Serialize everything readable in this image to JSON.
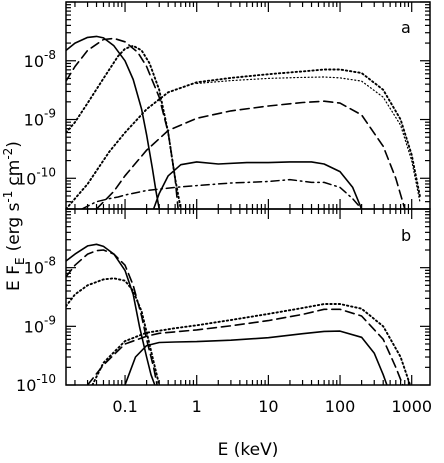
{
  "chart_data": [
    {
      "panel": "a",
      "type": "line",
      "xscale": "log",
      "yscale": "log",
      "xlim": [
        0.015,
        1800
      ],
      "ylim": [
        3e-11,
        1e-07
      ],
      "xticks": [
        0.1,
        1,
        10,
        100,
        1000
      ],
      "xtick_labels": [
        "0.1",
        "1",
        "10",
        "100",
        "1000"
      ],
      "yticks": [
        1e-10,
        1e-09,
        1e-08
      ],
      "ytick_labels": [
        "10",
        "-10",
        "10",
        "-9",
        "10",
        "-8"
      ],
      "series": [
        {
          "style": "solid",
          "points": [
            [
              0.015,
              1.5e-08
            ],
            [
              0.02,
              2e-08
            ],
            [
              0.03,
              2.5e-08
            ],
            [
              0.04,
              2.6e-08
            ],
            [
              0.05,
              2.45e-08
            ],
            [
              0.07,
              1.8e-08
            ],
            [
              0.1,
              1e-08
            ],
            [
              0.13,
              4.8e-09
            ],
            [
              0.17,
              1.5e-09
            ],
            [
              0.2,
              5.5e-10
            ],
            [
              0.24,
              1.5e-10
            ],
            [
              0.27,
              6e-11
            ],
            [
              0.3,
              3e-11
            ]
          ]
        },
        {
          "style": "solid",
          "points": [
            [
              0.25,
              3e-11
            ],
            [
              0.3,
              5.5e-11
            ],
            [
              0.4,
              1.1e-10
            ],
            [
              0.6,
              1.7e-10
            ],
            [
              1,
              1.9e-10
            ],
            [
              2,
              1.75e-10
            ],
            [
              5,
              1.85e-10
            ],
            [
              10,
              1.85e-10
            ],
            [
              20,
              1.9e-10
            ],
            [
              40,
              1.9e-10
            ],
            [
              60,
              1.75e-10
            ],
            [
              100,
              1.3e-10
            ],
            [
              150,
              7e-11
            ],
            [
              200,
              3e-11
            ]
          ]
        },
        {
          "style": "dashed",
          "points": [
            [
              0.015,
              4.5e-09
            ],
            [
              0.02,
              8e-09
            ],
            [
              0.03,
              1.5e-08
            ],
            [
              0.05,
              2.3e-08
            ],
            [
              0.07,
              2.4e-08
            ],
            [
              0.1,
              2.1e-08
            ],
            [
              0.15,
              1.4e-08
            ],
            [
              0.2,
              8e-09
            ],
            [
              0.3,
              2.4e-09
            ],
            [
              0.4,
              6e-10
            ],
            [
              0.5,
              1e-10
            ],
            [
              0.55,
              3e-11
            ]
          ]
        },
        {
          "style": "dashed",
          "points": [
            [
              0.04,
              3e-11
            ],
            [
              0.07,
              6e-11
            ],
            [
              0.1,
              1.1e-10
            ],
            [
              0.2,
              3e-10
            ],
            [
              0.4,
              6.5e-10
            ],
            [
              1,
              1.05e-09
            ],
            [
              3,
              1.4e-09
            ],
            [
              10,
              1.7e-09
            ],
            [
              30,
              1.95e-09
            ],
            [
              60,
              2.05e-09
            ],
            [
              100,
              1.9e-09
            ],
            [
              200,
              1.2e-09
            ],
            [
              400,
              3.5e-10
            ],
            [
              600,
              1e-10
            ],
            [
              800,
              3e-11
            ]
          ]
        },
        {
          "style": "dotted",
          "points": [
            [
              0.015,
              6e-10
            ],
            [
              0.02,
              9e-10
            ],
            [
              0.03,
              1.9e-09
            ],
            [
              0.05,
              5e-09
            ],
            [
              0.08,
              1.2e-08
            ],
            [
              0.1,
              1.6e-08
            ],
            [
              0.13,
              1.8e-08
            ],
            [
              0.17,
              1.5e-08
            ],
            [
              0.22,
              9e-09
            ],
            [
              0.3,
              3.2e-09
            ],
            [
              0.4,
              6e-10
            ],
            [
              0.5,
              1e-10
            ],
            [
              0.6,
              3e-11
            ]
          ]
        },
        {
          "style": "dotted",
          "points": [
            [
              0.015,
              3e-11
            ],
            [
              0.03,
              8e-11
            ],
            [
              0.06,
              2.8e-10
            ],
            [
              0.1,
              6e-10
            ],
            [
              0.2,
              1.5e-09
            ],
            [
              0.4,
              2.9e-09
            ],
            [
              1,
              4.3e-09
            ],
            [
              3,
              5.1e-09
            ],
            [
              10,
              5.9e-09
            ],
            [
              30,
              6.6e-09
            ],
            [
              60,
              7.1e-09
            ],
            [
              100,
              7.1e-09
            ],
            [
              200,
              6.2e-09
            ],
            [
              400,
              3.2e-09
            ],
            [
              700,
              1e-09
            ],
            [
              1000,
              2.5e-10
            ],
            [
              1300,
              5e-11
            ]
          ]
        },
        {
          "style": "dotted-fine",
          "points": [
            [
              1,
              4.1e-09
            ],
            [
              3,
              4.6e-09
            ],
            [
              10,
              5e-09
            ],
            [
              30,
              5.2e-09
            ],
            [
              60,
              5.3e-09
            ],
            [
              100,
              5.1e-09
            ],
            [
              200,
              4.5e-09
            ],
            [
              400,
              2.4e-09
            ],
            [
              700,
              8e-10
            ],
            [
              1000,
              2e-10
            ],
            [
              1300,
              4e-11
            ]
          ]
        },
        {
          "style": "dashdot",
          "points": [
            [
              0.025,
              3e-11
            ],
            [
              0.04,
              4e-11
            ],
            [
              0.06,
              4.5e-11
            ],
            [
              0.08,
              4.8e-11
            ],
            [
              0.1,
              5.2e-11
            ],
            [
              0.2,
              6.2e-11
            ],
            [
              0.5,
              7e-11
            ],
            [
              1,
              7.5e-11
            ],
            [
              3,
              8.3e-11
            ],
            [
              10,
              8.8e-11
            ],
            [
              20,
              9.5e-11
            ],
            [
              40,
              8.5e-11
            ],
            [
              60,
              8.5e-11
            ],
            [
              100,
              7e-11
            ],
            [
              150,
              4.5e-11
            ],
            [
              200,
              3e-11
            ]
          ]
        }
      ]
    },
    {
      "panel": "b",
      "type": "line",
      "xscale": "log",
      "yscale": "log",
      "xlim": [
        0.015,
        1800
      ],
      "ylim": [
        1e-10,
        1e-07
      ],
      "xticks": [
        0.1,
        1,
        10,
        100,
        1000
      ],
      "xtick_labels": [
        "0.1",
        "1",
        "10",
        "100",
        "1000"
      ],
      "yticks": [
        1e-10,
        1e-09,
        1e-08
      ],
      "ytick_labels": [
        "10",
        "-10",
        "10",
        "-9",
        "10",
        "-8"
      ],
      "series": [
        {
          "style": "solid",
          "points": [
            [
              0.015,
              1.3e-08
            ],
            [
              0.02,
              1.7e-08
            ],
            [
              0.03,
              2.35e-08
            ],
            [
              0.04,
              2.5e-08
            ],
            [
              0.05,
              2.3e-08
            ],
            [
              0.07,
              1.7e-08
            ],
            [
              0.1,
              9e-09
            ],
            [
              0.13,
              3.5e-09
            ],
            [
              0.16,
              9.5e-10
            ],
            [
              0.2,
              3e-10
            ],
            [
              0.23,
              1.5e-10
            ],
            [
              0.26,
              1e-10
            ]
          ]
        },
        {
          "style": "solid",
          "points": [
            [
              0.1,
              1e-10
            ],
            [
              0.14,
              3e-10
            ],
            [
              0.2,
              4.7e-10
            ],
            [
              0.3,
              5.3e-10
            ],
            [
              0.5,
              5.4e-10
            ],
            [
              1,
              5.5e-10
            ],
            [
              3,
              5.8e-10
            ],
            [
              10,
              6.4e-10
            ],
            [
              30,
              7.5e-10
            ],
            [
              60,
              8.2e-10
            ],
            [
              100,
              8.3e-10
            ],
            [
              200,
              6.5e-10
            ],
            [
              300,
              3.5e-10
            ],
            [
              400,
              1.5e-10
            ],
            [
              450,
              1e-10
            ]
          ]
        },
        {
          "style": "dashed",
          "points": [
            [
              0.015,
              7e-09
            ],
            [
              0.02,
              1.1e-08
            ],
            [
              0.03,
              1.7e-08
            ],
            [
              0.04,
              1.95e-08
            ],
            [
              0.05,
              2e-08
            ],
            [
              0.07,
              1.7e-08
            ],
            [
              0.1,
              1.1e-08
            ],
            [
              0.13,
              5e-09
            ],
            [
              0.17,
              1.5e-09
            ],
            [
              0.2,
              6e-10
            ],
            [
              0.25,
              2e-10
            ],
            [
              0.28,
              1e-10
            ]
          ]
        },
        {
          "style": "dashed",
          "points": [
            [
              0.03,
              1e-10
            ],
            [
              0.05,
              2.2e-10
            ],
            [
              0.1,
              5e-10
            ],
            [
              0.2,
              6.8e-10
            ],
            [
              0.3,
              7.6e-10
            ],
            [
              1,
              8.7e-10
            ],
            [
              3,
              1.02e-09
            ],
            [
              10,
              1.25e-09
            ],
            [
              30,
              1.6e-09
            ],
            [
              60,
              1.95e-09
            ],
            [
              100,
              1.95e-09
            ],
            [
              200,
              1.5e-09
            ],
            [
              400,
              6e-10
            ],
            [
              600,
              2e-10
            ],
            [
              750,
              1e-10
            ]
          ]
        },
        {
          "style": "dotted",
          "points": [
            [
              0.015,
              2.2e-09
            ],
            [
              0.02,
              3.5e-09
            ],
            [
              0.03,
              5e-09
            ],
            [
              0.05,
              6.3e-09
            ],
            [
              0.07,
              6.6e-09
            ],
            [
              0.1,
              6e-09
            ],
            [
              0.13,
              4e-09
            ],
            [
              0.17,
              1.8e-09
            ],
            [
              0.2,
              8e-10
            ],
            [
              0.25,
              2.5e-10
            ],
            [
              0.3,
              1e-10
            ]
          ]
        },
        {
          "style": "dotted",
          "points": [
            [
              0.035,
              1e-10
            ],
            [
              0.05,
              2.4e-10
            ],
            [
              0.1,
              5.6e-10
            ],
            [
              0.2,
              7.8e-10
            ],
            [
              0.5,
              9.3e-10
            ],
            [
              1,
              1.04e-09
            ],
            [
              3,
              1.28e-09
            ],
            [
              10,
              1.63e-09
            ],
            [
              30,
              2.05e-09
            ],
            [
              60,
              2.4e-09
            ],
            [
              100,
              2.4e-09
            ],
            [
              200,
              2e-09
            ],
            [
              400,
              1e-09
            ],
            [
              700,
              3e-10
            ],
            [
              950,
              1e-10
            ]
          ]
        }
      ]
    }
  ],
  "axes": {
    "xlabel": "E (keV)",
    "ylabel_main": "E F",
    "ylabel_sub": "E",
    "ylabel_units": "(erg s",
    "ylabel_exp1": "-1",
    "ylabel_cm": "cm",
    "ylabel_exp2": "-2",
    "ylabel_close": ")"
  }
}
